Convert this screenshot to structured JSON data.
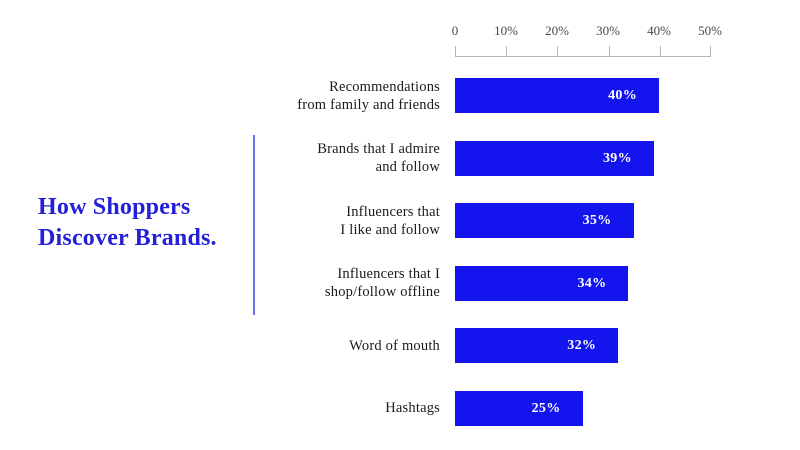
{
  "page": {
    "background_color": "#ffffff"
  },
  "title": {
    "lines": [
      "How Shoppers",
      "Discover Brands."
    ],
    "full": "How Shoppers Discover Brands.",
    "color": "#2420d9"
  },
  "chart_data": {
    "type": "bar",
    "orientation": "horizontal",
    "title": "How Shoppers Discover Brands.",
    "categories": [
      "Recommendations from family and friends",
      "Brands that I admire and follow",
      "Influencers that I like and follow",
      "Influencers that I shop/follow offline",
      "Word of mouth",
      "Hashtags"
    ],
    "values": [
      40,
      39,
      35,
      34,
      32,
      25
    ],
    "value_labels": [
      "40%",
      "39%",
      "35%",
      "34%",
      "32%",
      "25%"
    ],
    "xlabel": "",
    "ylabel": "",
    "legend": null,
    "grid": false,
    "axis": {
      "range": [
        0,
        50
      ],
      "tick_labels": [
        "0",
        "10%",
        "20%",
        "30%",
        "40%",
        "50%"
      ]
    },
    "bar_color": "#1414ee",
    "value_label_color": "#ffffff",
    "category_label_color": "#1b1b1b",
    "axis_label_color": "#4a4a4a",
    "rows": [
      {
        "lines": [
          "Recommendations",
          "from family and friends"
        ],
        "value": 40,
        "value_label": "40%"
      },
      {
        "lines": [
          "Brands that I admire",
          "and follow"
        ],
        "value": 39,
        "value_label": "39%"
      },
      {
        "lines": [
          "Influencers that",
          "I like and follow"
        ],
        "value": 35,
        "value_label": "35%"
      },
      {
        "lines": [
          "Influencers that I",
          "shop/follow offline"
        ],
        "value": 34,
        "value_label": "34%"
      },
      {
        "lines": [
          "Word of mouth"
        ],
        "value": 32,
        "value_label": "32%"
      },
      {
        "lines": [
          "Hashtags"
        ],
        "value": 25,
        "value_label": "25%"
      }
    ]
  }
}
